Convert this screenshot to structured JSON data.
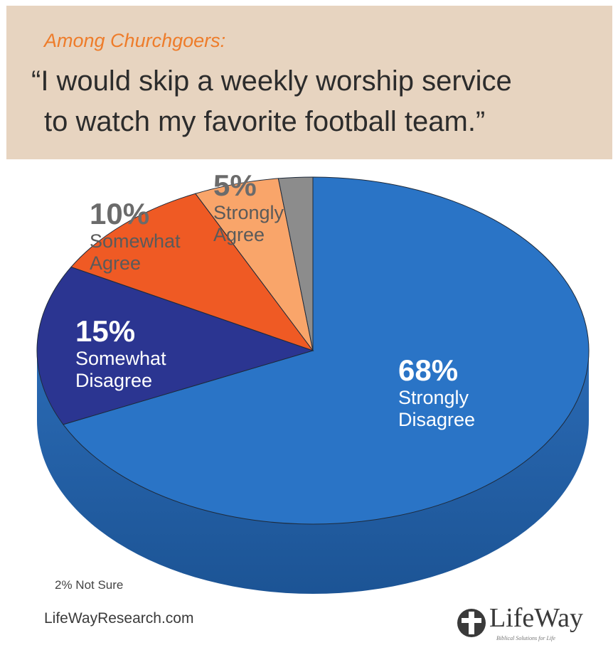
{
  "header": {
    "kicker": "Among Churchgoers:",
    "quote_line1": "“I would skip a weekly worship service",
    "quote_line2": "to watch my favorite football team.”"
  },
  "chart_data": {
    "type": "pie",
    "slices": [
      {
        "pct_label": "68%",
        "label_line1": "Strongly",
        "label_line2": "Disagree",
        "value": 68,
        "color": "#2a74c6"
      },
      {
        "pct_label": "15%",
        "label_line1": "Somewhat",
        "label_line2": "Disagree",
        "value": 15,
        "color": "#2b3591"
      },
      {
        "pct_label": "10%",
        "label_line1": "Somewhat",
        "label_line2": "Agree",
        "value": 10,
        "color": "#ef5a24"
      },
      {
        "pct_label": "5%",
        "label_line1": "Strongly",
        "label_line2": "Agree",
        "value": 5,
        "color": "#f9a56a"
      },
      {
        "pct_label": "",
        "label_line1": "",
        "label_line2": "",
        "value": 2,
        "color": "#8c8c8c"
      }
    ],
    "footnote": "2% Not Sure"
  },
  "footer": {
    "url": "LifeWayResearch.com",
    "logo_word": "LifeWay",
    "logo_tagline": "Biblical Solutions for Life"
  }
}
